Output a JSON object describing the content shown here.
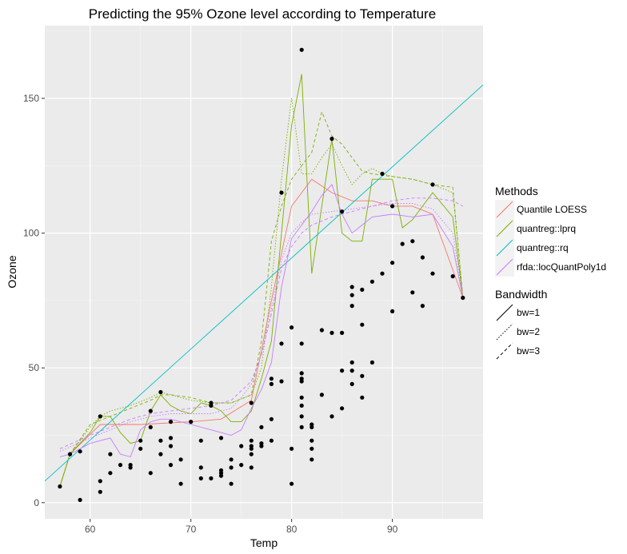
{
  "chart_data": {
    "type": "line",
    "title": "Predicting the 95% Ozone level according to Temperature",
    "xlabel": "Temp",
    "ylabel": "Ozone",
    "xlim": [
      55.5,
      99
    ],
    "ylim": [
      -6,
      177
    ],
    "x_ticks": [
      "60",
      "70",
      "80",
      "90"
    ],
    "y_ticks": [
      "0",
      "50",
      "100",
      "150"
    ],
    "x_tick_values": [
      60,
      70,
      80,
      90
    ],
    "y_tick_values": [
      0,
      50,
      100,
      150
    ],
    "grid": true,
    "legend_placement": "right",
    "legends": [
      {
        "title": "Methods",
        "entries": [
          {
            "label": "Quantile LOESS",
            "color": "#F8766D"
          },
          {
            "label": "quantreg::lprq",
            "color": "#7CAE00"
          },
          {
            "label": "quantreg::rq",
            "color": "#00BFC4"
          },
          {
            "label": "rfda::locQuantPoly1d",
            "color": "#C77CFF"
          }
        ]
      },
      {
        "title": "Bandwidth",
        "entries": [
          {
            "label": "bw=1",
            "dash": "solid"
          },
          {
            "label": "bw=2",
            "dash": "dotted"
          },
          {
            "label": "bw=3",
            "dash": "dashed"
          }
        ]
      }
    ],
    "points": [
      [
        57,
        6
      ],
      [
        58,
        18
      ],
      [
        59,
        1
      ],
      [
        59,
        19
      ],
      [
        61,
        32
      ],
      [
        61,
        8
      ],
      [
        61,
        4
      ],
      [
        62,
        11
      ],
      [
        62,
        18
      ],
      [
        63,
        14
      ],
      [
        64,
        14
      ],
      [
        64,
        13
      ],
      [
        65,
        23
      ],
      [
        65,
        20
      ],
      [
        66,
        34
      ],
      [
        66,
        28
      ],
      [
        66,
        11
      ],
      [
        67,
        41
      ],
      [
        67,
        23
      ],
      [
        67,
        18
      ],
      [
        68,
        30
      ],
      [
        68,
        24
      ],
      [
        68,
        14
      ],
      [
        68,
        21
      ],
      [
        69,
        16
      ],
      [
        69,
        7
      ],
      [
        70,
        30
      ],
      [
        71,
        23
      ],
      [
        71,
        13
      ],
      [
        71,
        9
      ],
      [
        72,
        37
      ],
      [
        72,
        36
      ],
      [
        72,
        9
      ],
      [
        73,
        24
      ],
      [
        73,
        12
      ],
      [
        73,
        11
      ],
      [
        73,
        10
      ],
      [
        74,
        16
      ],
      [
        74,
        7
      ],
      [
        74,
        13
      ],
      [
        75,
        21
      ],
      [
        75,
        14
      ],
      [
        76,
        37
      ],
      [
        76,
        23
      ],
      [
        76,
        21
      ],
      [
        76,
        20
      ],
      [
        76,
        18
      ],
      [
        76,
        13
      ],
      [
        77,
        28
      ],
      [
        77,
        22
      ],
      [
        77,
        21
      ],
      [
        78,
        44
      ],
      [
        78,
        46
      ],
      [
        78,
        31
      ],
      [
        78,
        23
      ],
      [
        79,
        115
      ],
      [
        79,
        59
      ],
      [
        79,
        45
      ],
      [
        80,
        65
      ],
      [
        80,
        20
      ],
      [
        80,
        7
      ],
      [
        81,
        168
      ],
      [
        81,
        59
      ],
      [
        81,
        48
      ],
      [
        81,
        46
      ],
      [
        81,
        45
      ],
      [
        81,
        39
      ],
      [
        81,
        36
      ],
      [
        81,
        32
      ],
      [
        81,
        28
      ],
      [
        82,
        29
      ],
      [
        82,
        28
      ],
      [
        82,
        23
      ],
      [
        82,
        20
      ],
      [
        82,
        16
      ],
      [
        83,
        64
      ],
      [
        83,
        40
      ],
      [
        84,
        135
      ],
      [
        84,
        63
      ],
      [
        84,
        32
      ],
      [
        85,
        108
      ],
      [
        85,
        63
      ],
      [
        85,
        49
      ],
      [
        85,
        35
      ],
      [
        86,
        80
      ],
      [
        86,
        77
      ],
      [
        86,
        73
      ],
      [
        86,
        52
      ],
      [
        86,
        49
      ],
      [
        86,
        44
      ],
      [
        87,
        79
      ],
      [
        87,
        66
      ],
      [
        87,
        47
      ],
      [
        87,
        39
      ],
      [
        88,
        82
      ],
      [
        88,
        52
      ],
      [
        89,
        122
      ],
      [
        89,
        85
      ],
      [
        90,
        110
      ],
      [
        90,
        89
      ],
      [
        90,
        71
      ],
      [
        91,
        96
      ],
      [
        92,
        97
      ],
      [
        92,
        78
      ],
      [
        93,
        91
      ],
      [
        93,
        73
      ],
      [
        94,
        118
      ],
      [
        94,
        85
      ],
      [
        96,
        84
      ],
      [
        97,
        76
      ]
    ],
    "series": [
      {
        "name": "Quantile LOESS",
        "bandwidth": "bw=1",
        "color": "#F8766D",
        "x": [
          57,
          58,
          61,
          65,
          70,
          73,
          76,
          78,
          80,
          82,
          84,
          86,
          88,
          90,
          92,
          94,
          97
        ],
        "y": [
          6,
          18,
          29,
          29,
          30,
          31,
          38,
          75,
          110,
          120,
          115,
          112,
          112,
          110,
          110,
          107,
          76
        ]
      },
      {
        "name": "quantreg::lprq",
        "bandwidth": "bw=1",
        "color": "#7CAE00",
        "x": [
          57,
          58,
          60,
          61,
          62,
          63,
          64,
          65,
          66,
          67,
          68,
          69,
          70,
          71,
          72,
          73,
          74,
          75,
          76,
          77,
          78,
          79,
          80,
          81,
          82,
          83,
          84,
          85,
          86,
          87,
          88,
          89,
          90,
          91,
          92,
          93,
          94,
          96,
          97
        ],
        "y": [
          6,
          18,
          26,
          32,
          32,
          26,
          22,
          23,
          34,
          40,
          36,
          34,
          33,
          37,
          36,
          34,
          30,
          30,
          34,
          46,
          60,
          100,
          140,
          159,
          85,
          110,
          135,
          100,
          97,
          97,
          120,
          120,
          120,
          102,
          105,
          110,
          115,
          106,
          76
        ]
      },
      {
        "name": "quantreg::lprq",
        "bandwidth": "bw=2",
        "color": "#7CAE00",
        "x": [
          57,
          58,
          60,
          61,
          62,
          64,
          66,
          67,
          68,
          70,
          72,
          74,
          76,
          77,
          78,
          79,
          80,
          81,
          82,
          83,
          84,
          85,
          86,
          87,
          88,
          89,
          90,
          92,
          93,
          94,
          96,
          97
        ],
        "y": [
          6,
          18,
          28,
          32,
          34,
          36,
          39,
          41,
          40,
          38,
          37,
          37,
          40,
          50,
          80,
          120,
          150,
          122,
          122,
          128,
          133,
          125,
          118,
          122,
          124,
          122,
          121,
          120,
          119,
          118,
          115,
          76
        ]
      },
      {
        "name": "quantreg::lprq",
        "bandwidth": "bw=3",
        "color": "#7CAE00",
        "x": [
          57,
          58,
          60,
          62,
          64,
          66,
          67,
          68,
          70,
          72,
          74,
          76,
          77,
          78,
          79,
          80,
          81,
          82,
          83,
          84,
          85,
          86,
          87,
          88,
          90,
          92,
          94,
          96,
          97
        ],
        "y": [
          6,
          18,
          29,
          32,
          35,
          38,
          40,
          40,
          39,
          37,
          37,
          40,
          60,
          97,
          110,
          120,
          125,
          130,
          145,
          136,
          133,
          128,
          123,
          122,
          121,
          120,
          118,
          117,
          76
        ]
      },
      {
        "name": "quantreg::rq",
        "bandwidth": "bw=1",
        "color": "#00BFC4",
        "x": [
          55.5,
          99
        ],
        "y": [
          8,
          155
        ]
      },
      {
        "name": "rfda::locQuantPoly1d",
        "bandwidth": "bw=1",
        "color": "#C77CFF",
        "x": [
          57,
          58,
          60,
          61,
          62,
          63,
          64,
          65,
          66,
          67,
          68,
          70,
          72,
          74,
          75,
          76,
          77,
          78,
          79,
          80,
          81,
          82,
          83,
          84,
          85,
          86,
          87,
          88,
          90,
          92,
          94,
          96,
          97
        ],
        "y": [
          17,
          18,
          22,
          23,
          24,
          18,
          17,
          27,
          30,
          31,
          31,
          29,
          27,
          25,
          27,
          35,
          42,
          52,
          80,
          98,
          103,
          108,
          114,
          118,
          107,
          100,
          103,
          106,
          107,
          106,
          107,
          95,
          76
        ]
      },
      {
        "name": "rfda::locQuantPoly1d",
        "bandwidth": "bw=2",
        "color": "#C77CFF",
        "x": [
          57,
          60,
          62,
          64,
          66,
          68,
          70,
          72,
          74,
          75,
          76,
          77,
          78,
          79,
          80,
          81,
          82,
          84,
          86,
          88,
          90,
          92,
          94,
          96,
          97
        ],
        "y": [
          19,
          24,
          27,
          30,
          32,
          33,
          33,
          33,
          35,
          39,
          44,
          55,
          72,
          90,
          100,
          104,
          107,
          108,
          109,
          110,
          111,
          111,
          109,
          100,
          76
        ]
      },
      {
        "name": "rfda::locQuantPoly1d",
        "bandwidth": "bw=3",
        "color": "#C77CFF",
        "x": [
          57,
          60,
          62,
          64,
          66,
          68,
          70,
          72,
          74,
          76,
          77,
          78,
          79,
          80,
          81,
          82,
          84,
          86,
          88,
          90,
          92,
          94,
          96,
          97
        ],
        "y": [
          20,
          25,
          28,
          31,
          33,
          34,
          35,
          36,
          38,
          45,
          55,
          70,
          87,
          95,
          100,
          103,
          106,
          108,
          110,
          112,
          113,
          113,
          112,
          110
        ]
      }
    ]
  }
}
